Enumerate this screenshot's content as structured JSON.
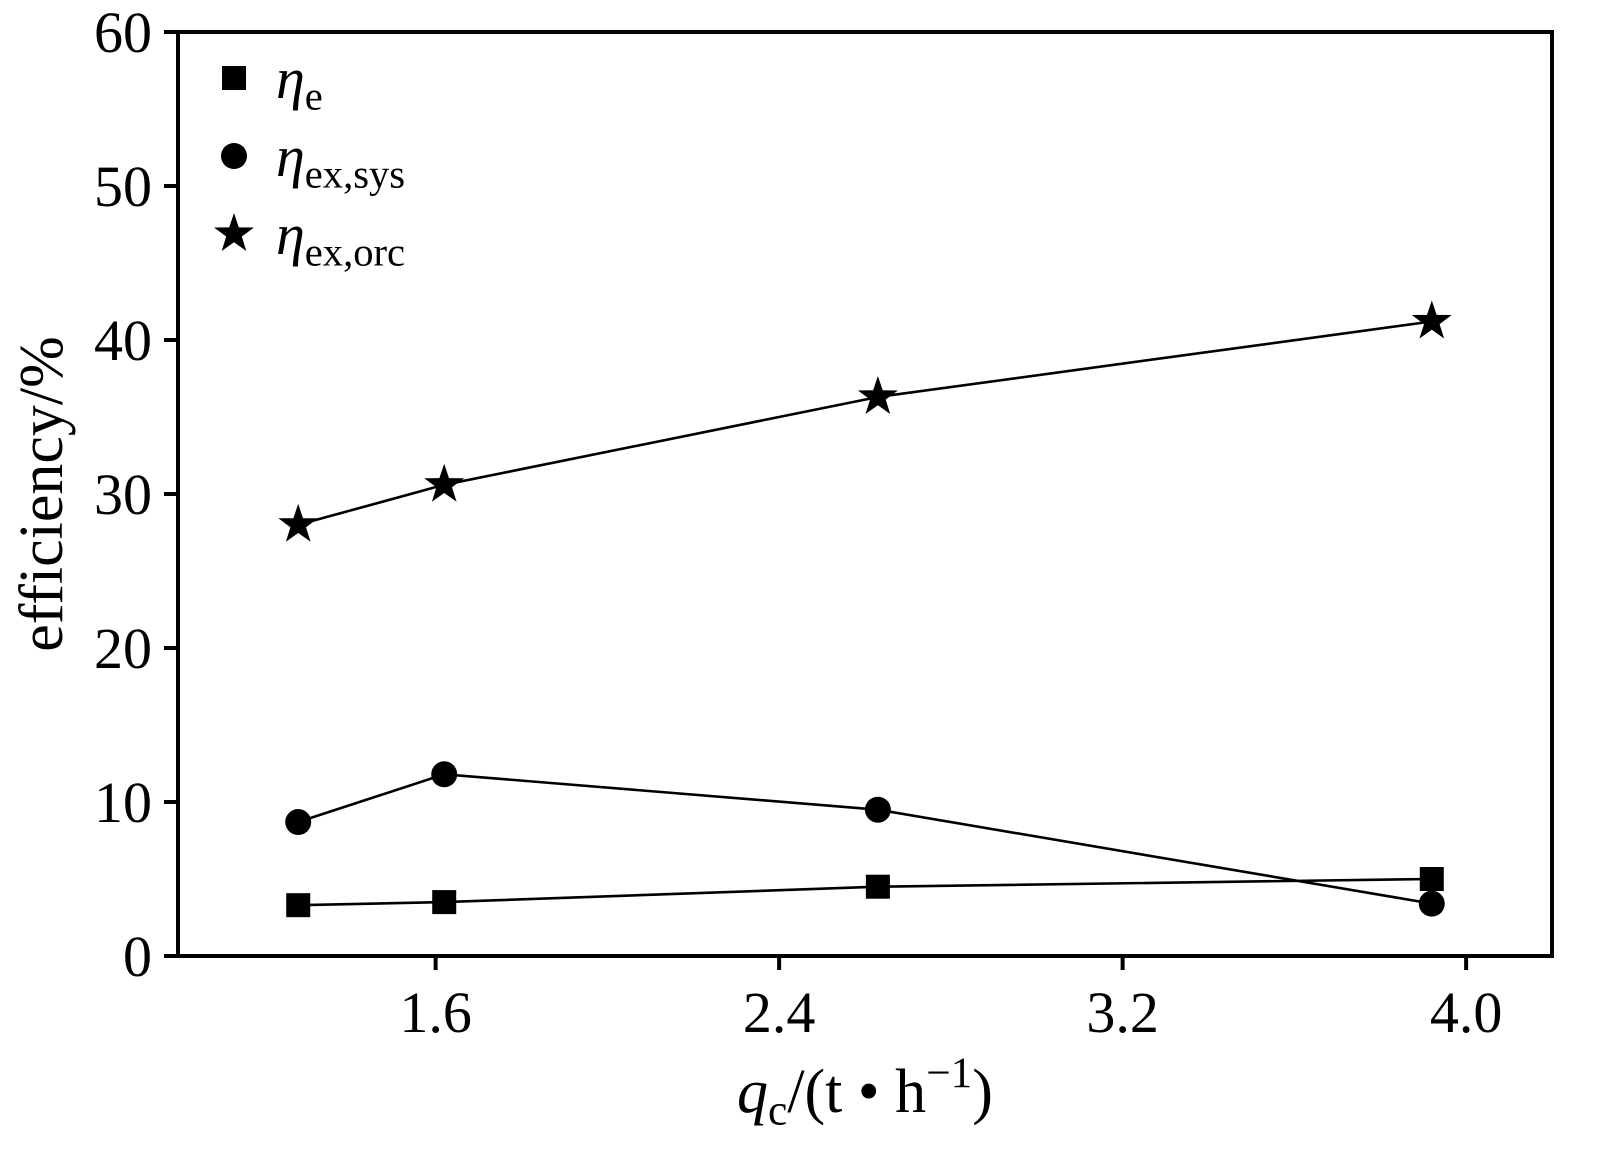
{
  "figure": {
    "background": "#ffffff",
    "frame_color": "#000000"
  },
  "chart_data": {
    "type": "line",
    "title": "",
    "ylabel": "efficiency/%",
    "ylabel_parts": [
      {
        "t": "efficiency/%",
        "style": "normal"
      }
    ],
    "xlabel_plain": "qc/(t • h⁻¹)",
    "xlabel_parts": [
      {
        "t": "q",
        "style": "italic"
      },
      {
        "t": "c",
        "type": "sub"
      },
      {
        "t": "/(t • h",
        "style": "normal"
      },
      {
        "t": "−1",
        "type": "sup"
      },
      {
        "t": ")",
        "style": "normal"
      }
    ],
    "xlim": [
      1.0,
      4.2
    ],
    "ylim": [
      0,
      60
    ],
    "grid": false,
    "legend_position": "top-left",
    "x_ticks": [
      {
        "v": 1.6,
        "label": "1.6"
      },
      {
        "v": 2.4,
        "label": "2.4"
      },
      {
        "v": 3.2,
        "label": "3.2"
      },
      {
        "v": 4.0,
        "label": "4.0"
      }
    ],
    "y_ticks": [
      {
        "v": 0,
        "label": "0"
      },
      {
        "v": 10,
        "label": "10"
      },
      {
        "v": 20,
        "label": "20"
      },
      {
        "v": 30,
        "label": "30"
      },
      {
        "v": 40,
        "label": "40"
      },
      {
        "v": 50,
        "label": "50"
      },
      {
        "v": 60,
        "label": "60"
      }
    ],
    "x": [
      1.28,
      1.62,
      2.63,
      3.92
    ],
    "series": [
      {
        "name": "eta-e",
        "marker": "square",
        "label_plain": "ηe",
        "label_parts": [
          {
            "t": "η",
            "style": "italic"
          },
          {
            "t": "e",
            "type": "sub"
          }
        ],
        "values": [
          3.3,
          3.5,
          4.5,
          5.0
        ]
      },
      {
        "name": "eta-ex-sys",
        "marker": "circle",
        "label_plain": "ηex,sys",
        "label_parts": [
          {
            "t": "η",
            "style": "italic"
          },
          {
            "t": "ex,sys",
            "type": "sub"
          }
        ],
        "values": [
          8.7,
          11.8,
          9.5,
          3.4
        ]
      },
      {
        "name": "eta-ex-orc",
        "marker": "star",
        "label_plain": "ηex,orc",
        "label_parts": [
          {
            "t": "η",
            "style": "italic"
          },
          {
            "t": "ex,orc",
            "type": "sub"
          }
        ],
        "values": [
          28.0,
          30.6,
          36.3,
          41.2
        ]
      }
    ],
    "colors": {
      "line": "#000000",
      "marker": "#000000",
      "text": "#000000"
    }
  }
}
